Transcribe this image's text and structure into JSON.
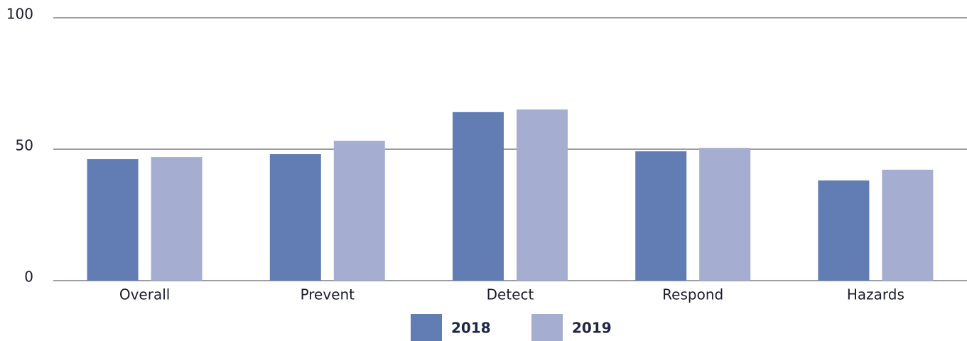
{
  "chart_data": {
    "type": "bar",
    "categories": [
      "Overall",
      "Prevent",
      "Detect",
      "Respond",
      "Hazards"
    ],
    "series": [
      {
        "name": "2018",
        "color": "#617db4",
        "values": [
          46.2,
          48.1,
          64.1,
          49.2,
          38.1
        ]
      },
      {
        "name": "2019",
        "color": "#a5aed1",
        "values": [
          47.0,
          53.2,
          65.1,
          50.5,
          42.2
        ]
      }
    ],
    "ylim": [
      0,
      100
    ],
    "yticks": [
      0,
      50,
      100
    ],
    "grid": true
  }
}
